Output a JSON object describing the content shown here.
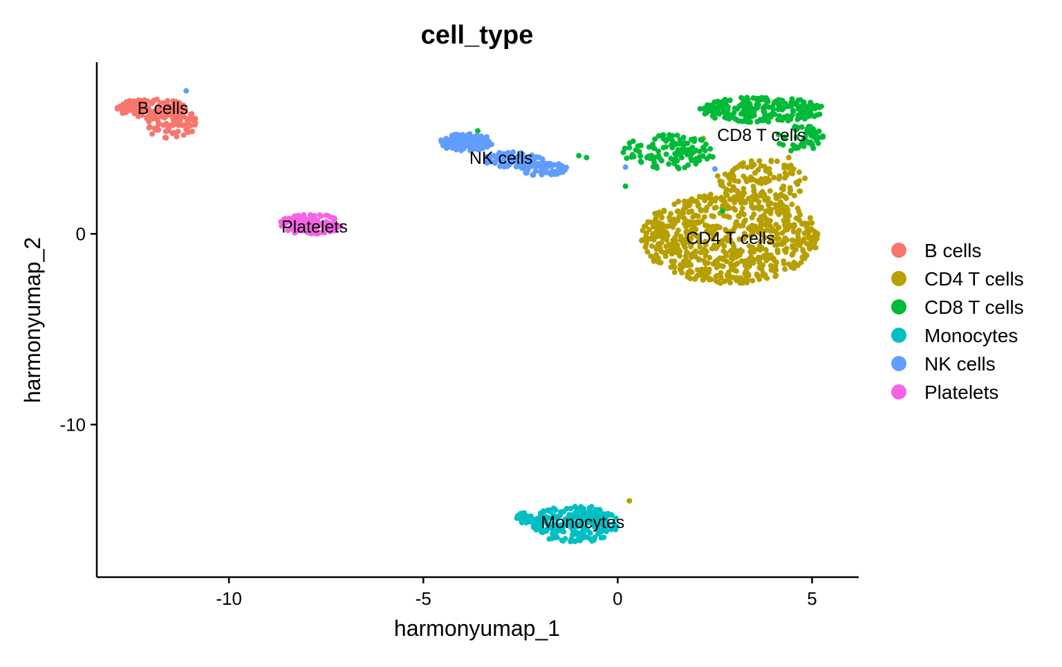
{
  "chart_data": {
    "type": "scatter",
    "title": "cell_type",
    "xlabel": "harmonyumap_1",
    "ylabel": "harmonyumap_2",
    "xlim": [
      -13.4,
      6.2
    ],
    "ylim": [
      -18.0,
      9.0
    ],
    "x_ticks": [
      -10,
      -5,
      0,
      5
    ],
    "x_tick_labels": [
      "-10",
      "-5",
      "0",
      "5"
    ],
    "y_ticks": [
      0,
      -10
    ],
    "y_tick_labels": [
      "0",
      "-10"
    ],
    "grid": false,
    "legend_position": "right",
    "series": [
      {
        "name": "B cells",
        "color": "#F8766D",
        "clusters": [
          {
            "cx": -12.0,
            "cy": 6.6,
            "rx": 0.9,
            "ry": 0.5,
            "n": 120
          },
          {
            "cx": -11.5,
            "cy": 5.8,
            "rx": 0.7,
            "ry": 0.8,
            "n": 90
          }
        ]
      },
      {
        "name": "CD4 T cells",
        "color": "#B79F00",
        "clusters": [
          {
            "cx": 2.9,
            "cy": -0.2,
            "rx": 2.3,
            "ry": 2.4,
            "n": 700
          },
          {
            "cx": 3.7,
            "cy": 2.6,
            "rx": 1.2,
            "ry": 1.3,
            "n": 120
          }
        ],
        "points": [
          [
            0.3,
            -14.0
          ],
          [
            2.2,
            5.0
          ],
          [
            4.4,
            4.0
          ]
        ]
      },
      {
        "name": "CD8 T cells",
        "color": "#00BA38",
        "clusters": [
          {
            "cx": 3.7,
            "cy": 6.5,
            "rx": 1.6,
            "ry": 0.7,
            "n": 220
          },
          {
            "cx": 1.3,
            "cy": 4.3,
            "rx": 1.2,
            "ry": 0.9,
            "n": 110
          },
          {
            "cx": 4.7,
            "cy": 5.0,
            "rx": 0.6,
            "ry": 0.7,
            "n": 50
          }
        ],
        "points": [
          [
            -3.6,
            5.4
          ],
          [
            -1.0,
            4.1
          ],
          [
            -0.8,
            4.0
          ],
          [
            0.2,
            2.5
          ],
          [
            2.7,
            1.2
          ]
        ]
      },
      {
        "name": "Monocytes",
        "color": "#00BFC4",
        "clusters": [
          {
            "cx": -1.1,
            "cy": -15.2,
            "rx": 1.1,
            "ry": 1.0,
            "n": 220
          },
          {
            "cx": -2.3,
            "cy": -14.9,
            "rx": 0.4,
            "ry": 0.3,
            "n": 30
          }
        ]
      },
      {
        "name": "NK cells",
        "color": "#619CFF",
        "clusters": [
          {
            "cx": -3.9,
            "cy": 4.8,
            "rx": 0.7,
            "ry": 0.45,
            "n": 110
          },
          {
            "cx": -2.7,
            "cy": 3.9,
            "rx": 0.8,
            "ry": 0.4,
            "n": 80
          },
          {
            "cx": -1.9,
            "cy": 3.4,
            "rx": 0.6,
            "ry": 0.35,
            "n": 70
          }
        ],
        "points": [
          [
            -11.1,
            7.5
          ],
          [
            0.2,
            3.5
          ],
          [
            2.5,
            3.4
          ]
        ]
      },
      {
        "name": "Platelets",
        "color": "#F564E3",
        "clusters": [
          {
            "cx": -7.9,
            "cy": 0.5,
            "rx": 0.8,
            "ry": 0.55,
            "n": 130
          }
        ]
      }
    ],
    "cluster_labels": [
      {
        "text": "B cells",
        "x": -11.7,
        "y": 6.6
      },
      {
        "text": "NK cells",
        "x": -3.0,
        "y": 4.0
      },
      {
        "text": "Platelets",
        "x": -7.8,
        "y": 0.4
      },
      {
        "text": "CD8 T cells",
        "x": 3.7,
        "y": 5.2
      },
      {
        "text": "CD4 T cells",
        "x": 2.9,
        "y": -0.2
      },
      {
        "text": "Monocytes",
        "x": -0.9,
        "y": -15.1
      }
    ]
  }
}
